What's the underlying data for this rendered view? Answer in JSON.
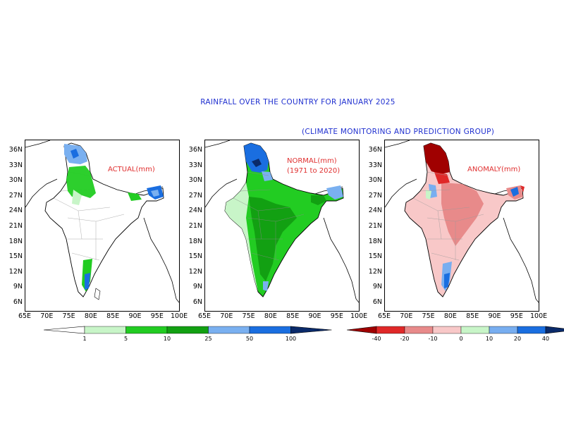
{
  "title": "RAINFALL OVER THE COUNTRY FOR JANUARY 2025",
  "subtitle": "(CLIMATE MONITORING AND PREDICTION GROUP)",
  "panels": [
    {
      "label_line1": "ACTUAL(mm)",
      "label_line2": ""
    },
    {
      "label_line1": "NORMAL(mm)",
      "label_line2": "(1971 to 2020)"
    },
    {
      "label_line1": "ANOMALY(mm)",
      "label_line2": ""
    }
  ],
  "lat_ticks": [
    "36N",
    "33N",
    "30N",
    "27N",
    "24N",
    "21N",
    "18N",
    "15N",
    "12N",
    "9N",
    "6N"
  ],
  "lon_ticks": [
    "65E",
    "70E",
    "75E",
    "80E",
    "85E",
    "90E",
    "95E",
    "100E"
  ],
  "colorbar_rain": {
    "labels": [
      "1",
      "5",
      "10",
      "25",
      "50",
      "100"
    ],
    "colors": [
      "#ffffff",
      "#c8f5c8",
      "#22cc22",
      "#12a012",
      "#7ab0f0",
      "#1a6ee0",
      "#0a2a6a"
    ]
  },
  "colorbar_anom": {
    "labels": [
      "-40",
      "-20",
      "-10",
      "0",
      "10",
      "20",
      "40"
    ],
    "colors": [
      "#a00000",
      "#e02828",
      "#e88a8a",
      "#f8c8c8",
      "#c8f5c8",
      "#78aef0",
      "#1a6ee0",
      "#0a2a6a"
    ]
  },
  "colors": {
    "title": "#2030d0",
    "panel_label": "#e03030"
  }
}
